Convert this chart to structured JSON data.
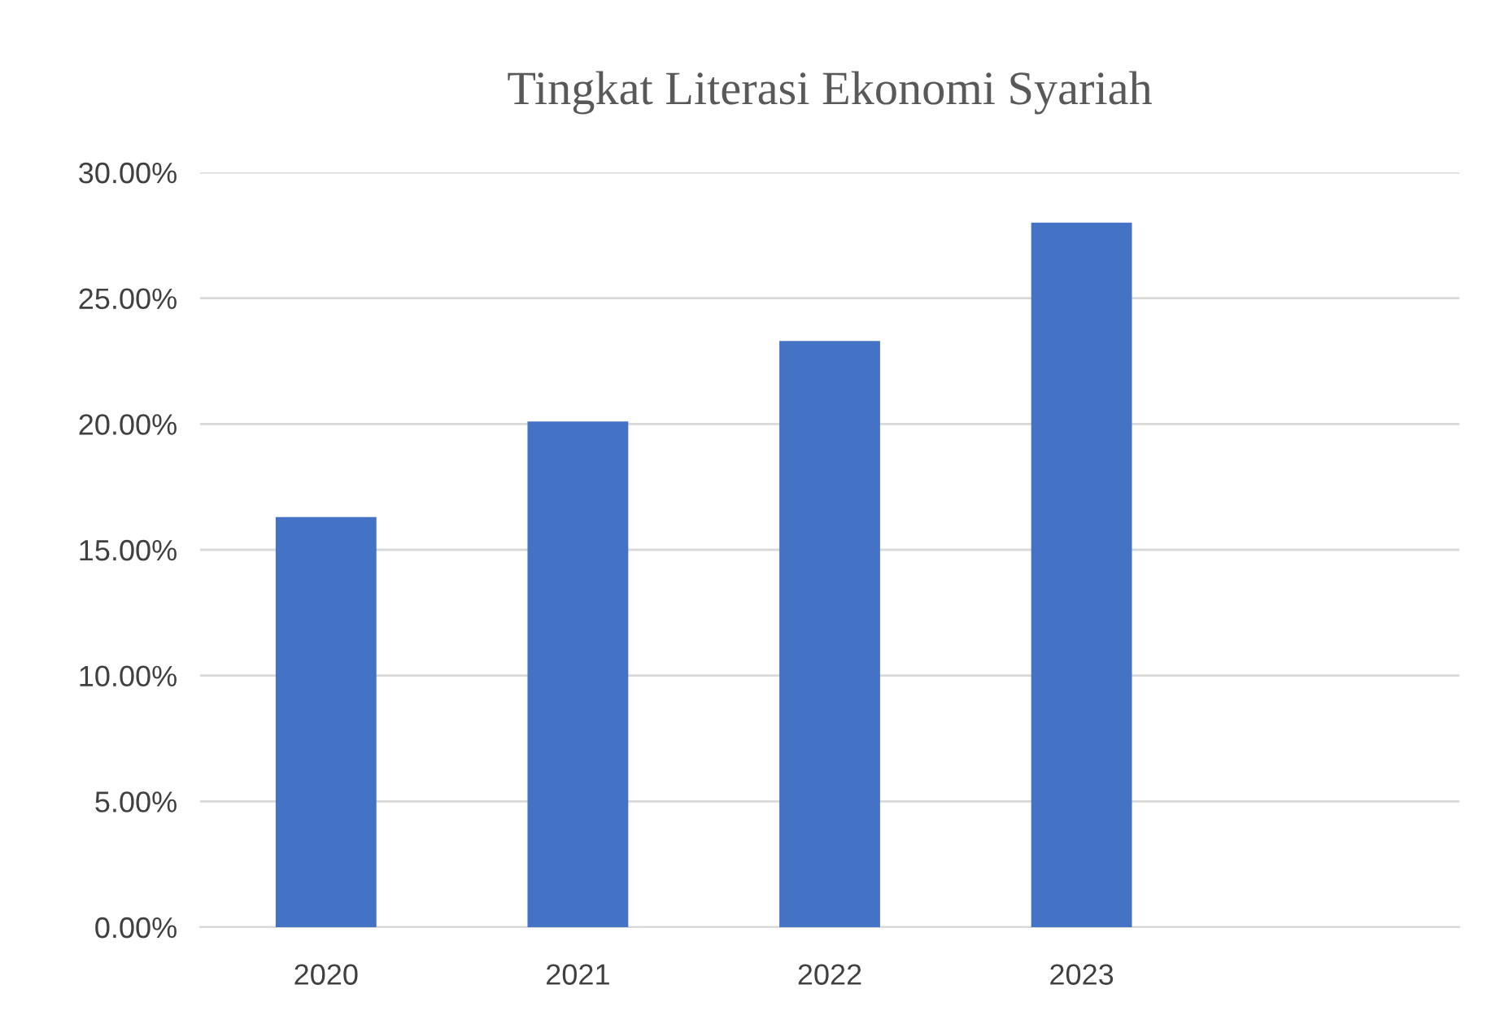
{
  "chart_data": {
    "type": "bar",
    "title": "Tingkat Literasi Ekonomi Syariah",
    "categories": [
      "2020",
      "2021",
      "2022",
      "2023",
      null
    ],
    "values": [
      16.3,
      20.1,
      23.3,
      28.0,
      null
    ],
    "color": "#4472c4",
    "ylim": [
      0,
      30
    ],
    "yticks": [
      {
        "value": 0,
        "label": "0.00%"
      },
      {
        "value": 5,
        "label": "5.00%"
      },
      {
        "value": 10,
        "label": "10.00%"
      },
      {
        "value": 15,
        "label": "15.00%"
      },
      {
        "value": 20,
        "label": "20.00%"
      },
      {
        "value": 25,
        "label": "25.00%"
      },
      {
        "value": 30,
        "label": "30.00%"
      }
    ],
    "grid": "y",
    "legend": false
  }
}
